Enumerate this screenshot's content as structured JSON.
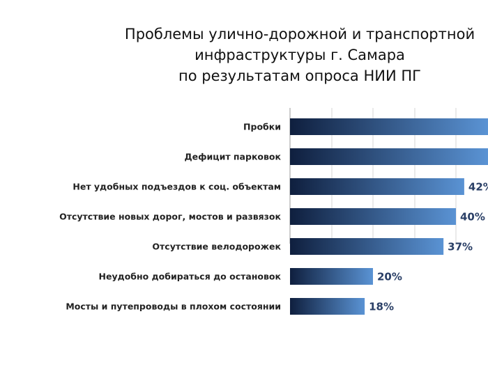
{
  "title": {
    "line1": "Проблемы улично-дорожной и транспортной",
    "line2": "инфраструктуры г. Самара",
    "line3": "по результатам опроса НИИ ПГ"
  },
  "chart_data": {
    "type": "bar",
    "orientation": "horizontal",
    "categories": [
      "Пробки",
      "Дефицит парковок",
      "Нет удобных подъездов к соц. объектам",
      "Отсутствие новых дорог, мостов и развязок",
      "Отсутствие велодорожек",
      "Неудобно добираться до остановок",
      "Мосты и путепроводы в плохом состоянии"
    ],
    "values": [
      null,
      null,
      42,
      40,
      37,
      20,
      18
    ],
    "value_labels": [
      "",
      "",
      "42%",
      "40%",
      "37%",
      "20%",
      "18%"
    ],
    "unit": "%",
    "xlim": [
      0,
      60
    ],
    "grid": true,
    "bar_gradient": [
      "#0f1f3e",
      "#5a93d4"
    ]
  }
}
